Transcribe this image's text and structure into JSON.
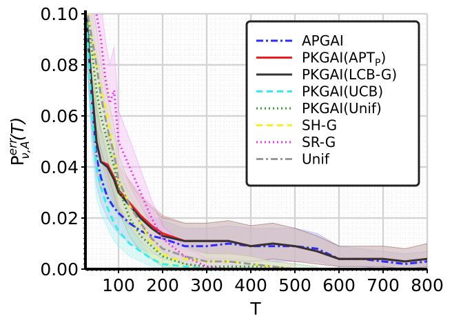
{
  "chart_data": {
    "type": "line",
    "title": "",
    "xlabel": "T",
    "ylabel": "P^{err}_{ν,A}(T)",
    "ylabel_parts": {
      "base": "P",
      "sup": "err",
      "sub": "ν,A",
      "arg": "(T)"
    },
    "xlim": [
      25,
      800
    ],
    "ylim": [
      0,
      0.1
    ],
    "xticks": [
      100,
      200,
      300,
      400,
      500,
      600,
      700,
      800
    ],
    "xtick_labels": [
      "100",
      "200",
      "300",
      "400",
      "500",
      "600",
      "700",
      "800"
    ],
    "yticks": [
      0.0,
      0.02,
      0.04,
      0.06,
      0.08,
      0.1
    ],
    "ytick_labels": [
      "0.00",
      "0.02",
      "0.04",
      "0.06",
      "0.08",
      "0.10"
    ],
    "grid": true,
    "legend_position": "top-right",
    "series": [
      {
        "name": "APGAI",
        "label": "APGAI",
        "color": "#2b2bff",
        "dash": "dashdot",
        "fill": "#b8b8f0",
        "x": [
          25,
          40,
          50,
          60,
          75,
          90,
          100,
          125,
          150,
          175,
          200,
          250,
          300,
          350,
          400,
          450,
          500,
          550,
          600,
          650,
          700,
          750,
          800
        ],
        "y": [
          0.105,
          0.065,
          0.044,
          0.036,
          0.028,
          0.024,
          0.022,
          0.018,
          0.015,
          0.013,
          0.012,
          0.009,
          0.009,
          0.01,
          0.009,
          0.009,
          0.009,
          0.008,
          0.004,
          0.004,
          0.003,
          0.002,
          0.003
        ],
        "band_low": [
          0.09,
          0.05,
          0.033,
          0.026,
          0.02,
          0.016,
          0.014,
          0.01,
          0.008,
          0.006,
          0.005,
          0.003,
          0.003,
          0.003,
          0.003,
          0.003,
          0.003,
          0.003,
          0.001,
          0.001,
          0.0,
          0.0,
          0.0
        ],
        "band_high": [
          0.12,
          0.08,
          0.057,
          0.047,
          0.038,
          0.033,
          0.031,
          0.026,
          0.023,
          0.02,
          0.019,
          0.016,
          0.016,
          0.017,
          0.016,
          0.016,
          0.016,
          0.014,
          0.009,
          0.008,
          0.007,
          0.006,
          0.007
        ]
      },
      {
        "name": "PKGAI(APT_P)",
        "label": "PKGAI(APT",
        "label_sub": "P",
        "label_tail": ")",
        "color": "#e82020",
        "dash": "solid",
        "fill": "#d9a0a0",
        "x": [
          25,
          40,
          50,
          60,
          75,
          90,
          100,
          125,
          150,
          175,
          200,
          250,
          300,
          350,
          400,
          450,
          500,
          550,
          600,
          650,
          700,
          750,
          800
        ],
        "y": [
          0.105,
          0.07,
          0.05,
          0.042,
          0.041,
          0.036,
          0.031,
          0.026,
          0.021,
          0.017,
          0.014,
          0.011,
          0.011,
          0.011,
          0.009,
          0.01,
          0.009,
          0.007,
          0.004,
          0.004,
          0.004,
          0.003,
          0.004
        ],
        "band_low": [
          0.09,
          0.055,
          0.038,
          0.031,
          0.03,
          0.026,
          0.022,
          0.018,
          0.014,
          0.01,
          0.008,
          0.005,
          0.004,
          0.004,
          0.003,
          0.004,
          0.003,
          0.002,
          0.001,
          0.001,
          0.001,
          0.0,
          0.001
        ],
        "band_high": [
          0.12,
          0.085,
          0.063,
          0.054,
          0.053,
          0.047,
          0.041,
          0.035,
          0.029,
          0.025,
          0.021,
          0.018,
          0.018,
          0.019,
          0.017,
          0.018,
          0.016,
          0.013,
          0.009,
          0.009,
          0.009,
          0.008,
          0.01
        ]
      },
      {
        "name": "PKGAI(LCB-G)",
        "label": "PKGAI(LCB-G)",
        "color": "#333333",
        "dash": "solid",
        "fill": "#cfcfcf",
        "x": [
          25,
          40,
          50,
          60,
          75,
          90,
          100,
          125,
          150,
          175,
          200,
          250,
          300,
          350,
          400,
          450,
          500,
          550,
          600,
          650,
          700,
          750,
          800
        ],
        "y": [
          0.105,
          0.07,
          0.05,
          0.042,
          0.04,
          0.035,
          0.03,
          0.025,
          0.02,
          0.016,
          0.013,
          0.011,
          0.011,
          0.011,
          0.009,
          0.01,
          0.009,
          0.007,
          0.004,
          0.004,
          0.004,
          0.003,
          0.004
        ],
        "band_low": [
          0.09,
          0.055,
          0.038,
          0.031,
          0.029,
          0.025,
          0.021,
          0.017,
          0.013,
          0.01,
          0.007,
          0.005,
          0.004,
          0.004,
          0.003,
          0.004,
          0.003,
          0.002,
          0.001,
          0.001,
          0.001,
          0.0,
          0.001
        ],
        "band_high": [
          0.12,
          0.085,
          0.063,
          0.054,
          0.052,
          0.046,
          0.04,
          0.034,
          0.028,
          0.024,
          0.02,
          0.018,
          0.018,
          0.019,
          0.017,
          0.018,
          0.016,
          0.013,
          0.009,
          0.009,
          0.009,
          0.008,
          0.01
        ]
      },
      {
        "name": "PKGAI(UCB)",
        "label": "PKGAI(UCB)",
        "color": "#33eeee",
        "dash": "dashed",
        "fill": "#b5eded",
        "x": [
          25,
          40,
          50,
          60,
          75,
          90,
          100,
          125,
          150,
          175,
          200,
          250,
          300,
          350,
          400
        ],
        "y": [
          0.105,
          0.06,
          0.04,
          0.032,
          0.024,
          0.018,
          0.015,
          0.01,
          0.007,
          0.004,
          0.002,
          0.001,
          0.0,
          0.0,
          0.0
        ],
        "band_low": [
          0.09,
          0.045,
          0.028,
          0.022,
          0.016,
          0.011,
          0.009,
          0.005,
          0.003,
          0.001,
          0.0,
          0.0,
          0.0,
          0.0,
          0.0
        ],
        "band_high": [
          0.12,
          0.075,
          0.052,
          0.043,
          0.033,
          0.026,
          0.022,
          0.016,
          0.012,
          0.008,
          0.005,
          0.003,
          0.002,
          0.001,
          0.001
        ]
      },
      {
        "name": "PKGAI(Unif)",
        "label": "PKGAI(Unif)",
        "color": "#2e9e2e",
        "dash": "dotted",
        "fill": "#b9e3b9",
        "x": [
          25,
          40,
          50,
          60,
          75,
          90,
          100,
          125,
          150,
          175,
          200,
          250,
          300,
          350,
          400,
          450,
          500,
          550
        ],
        "y": [
          0.105,
          0.085,
          0.07,
          0.06,
          0.05,
          0.04,
          0.032,
          0.02,
          0.013,
          0.009,
          0.005,
          0.002,
          0.001,
          0.001,
          0.001,
          0.001,
          0.0,
          0.0
        ],
        "band_low": [
          0.09,
          0.07,
          0.055,
          0.047,
          0.038,
          0.029,
          0.023,
          0.013,
          0.007,
          0.004,
          0.001,
          0.0,
          0.0,
          0.0,
          0.0,
          0.0,
          0.0,
          0.0
        ],
        "band_high": [
          0.12,
          0.1,
          0.085,
          0.073,
          0.062,
          0.051,
          0.041,
          0.027,
          0.019,
          0.014,
          0.009,
          0.005,
          0.003,
          0.003,
          0.003,
          0.003,
          0.002,
          0.001
        ]
      },
      {
        "name": "SH-G",
        "label": "SH-G",
        "color": "#f2f22a",
        "dash": "dashed",
        "fill": "#f5f5b8",
        "x": [
          25,
          40,
          50,
          60,
          75,
          90,
          100,
          125,
          150,
          175,
          200,
          225,
          250,
          300,
          350,
          400,
          450,
          500
        ],
        "y": [
          0.105,
          0.09,
          0.08,
          0.07,
          0.06,
          0.045,
          0.035,
          0.025,
          0.018,
          0.01,
          0.006,
          0.004,
          0.004,
          0.003,
          0.003,
          0.002,
          0.001,
          0.0
        ],
        "band_low": [
          0.09,
          0.075,
          0.065,
          0.056,
          0.047,
          0.034,
          0.025,
          0.017,
          0.011,
          0.005,
          0.002,
          0.001,
          0.001,
          0.0,
          0.0,
          0.0,
          0.0,
          0.0
        ],
        "band_high": [
          0.12,
          0.105,
          0.095,
          0.084,
          0.073,
          0.056,
          0.045,
          0.033,
          0.025,
          0.015,
          0.01,
          0.008,
          0.007,
          0.006,
          0.006,
          0.005,
          0.003,
          0.002
        ]
      },
      {
        "name": "SR-G",
        "label": "SR-G",
        "color": "#ee33ee",
        "dash": "dotted",
        "fill": "#f5c2f5",
        "x": [
          25,
          40,
          50,
          60,
          70,
          80,
          90,
          100,
          125,
          150,
          175,
          200,
          250,
          300,
          350,
          400
        ],
        "y": [
          0.105,
          0.105,
          0.1,
          0.09,
          0.075,
          0.065,
          0.07,
          0.05,
          0.04,
          0.03,
          0.02,
          0.012,
          0.005,
          0.001,
          0.0,
          0.0
        ],
        "band_low": [
          0.09,
          0.09,
          0.085,
          0.075,
          0.06,
          0.05,
          0.055,
          0.038,
          0.029,
          0.021,
          0.013,
          0.007,
          0.002,
          0.0,
          0.0,
          0.0
        ],
        "band_high": [
          0.12,
          0.12,
          0.115,
          0.105,
          0.09,
          0.08,
          0.087,
          0.062,
          0.051,
          0.039,
          0.027,
          0.017,
          0.009,
          0.004,
          0.002,
          0.001
        ]
      },
      {
        "name": "Unif",
        "label": "Unif",
        "color": "#999999",
        "dash": "dashdot",
        "fill": "#dddddd",
        "x": [
          25,
          40,
          50,
          60,
          75,
          90,
          100,
          125,
          150,
          175,
          200,
          250,
          300,
          350,
          400,
          450,
          500
        ],
        "y": [
          0.105,
          0.09,
          0.08,
          0.068,
          0.055,
          0.045,
          0.035,
          0.025,
          0.018,
          0.012,
          0.008,
          0.005,
          0.003,
          0.003,
          0.002,
          0.001,
          0.0
        ],
        "band_low": [
          0.09,
          0.075,
          0.066,
          0.055,
          0.043,
          0.034,
          0.025,
          0.017,
          0.011,
          0.007,
          0.004,
          0.002,
          0.0,
          0.0,
          0.0,
          0.0,
          0.0
        ],
        "band_high": [
          0.12,
          0.105,
          0.094,
          0.081,
          0.067,
          0.056,
          0.045,
          0.033,
          0.025,
          0.017,
          0.012,
          0.009,
          0.006,
          0.006,
          0.005,
          0.003,
          0.002
        ]
      }
    ]
  }
}
